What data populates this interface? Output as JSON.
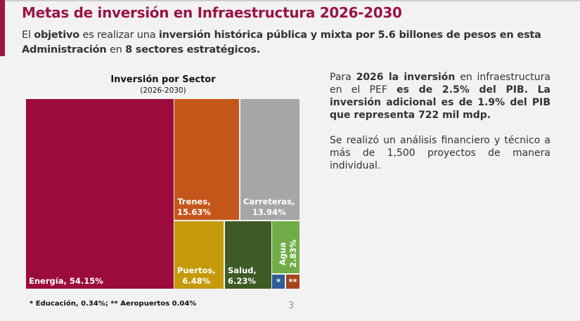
{
  "header": {
    "title": "Metas de inversión en Infraestructura 2026-2030"
  },
  "lead": {
    "p1": "El ",
    "b1": "objetivo",
    " p2": "",
    "p2": " es realizar una ",
    "b2": "inversión histórica pública y mixta por 5.6 billones de pesos en esta Administración",
    "p3": " en ",
    "b3": "8 sectores estratégicos."
  },
  "side": {
    "a1": "Para ",
    "a2": "2026 la inversión",
    "a3": " en infraestructura en el PEF ",
    "a4": "es de 2.5% del PIB. La inversión adicional es de 1.9% del PIB que representa 722 mil mdp.",
    "b": "Se realizó un análisis financiero y técnico a más de 1,500 proyectos de manera individual."
  },
  "chart_data": {
    "type": "treemap",
    "title": "Inversión por Sector",
    "subtitle": "(2026-2030)",
    "items": [
      {
        "name": "Energía",
        "value": 54.15,
        "label": "Energía, 54.15%",
        "color": "#9b0b3b"
      },
      {
        "name": "Trenes",
        "value": 15.63,
        "label": "Trenes,\n15.63%",
        "color": "#c5561a"
      },
      {
        "name": "Carreteras",
        "value": 13.94,
        "label": "Carreteras,\n13.94%",
        "color": "#a6a6a6"
      },
      {
        "name": "Puertos",
        "value": 6.48,
        "label": "Puertos,\n6.48%",
        "color": "#c49a0a"
      },
      {
        "name": "Salud",
        "value": 6.23,
        "label": "Salud,\n6.23%",
        "color": "#3e5a25"
      },
      {
        "name": "Agua",
        "value": 2.83,
        "label": "Agua\n2.83%",
        "color": "#70ad47"
      },
      {
        "name": "Educación",
        "value": 0.34,
        "label": "*",
        "color": "#2e5e95"
      },
      {
        "name": "Aeropuertos",
        "value": 0.04,
        "label": "**",
        "color": "#a3441b"
      }
    ],
    "footnote": "* Educación, 0.34%; ** Aeropuertos 0.04%"
  },
  "page_number": "3"
}
